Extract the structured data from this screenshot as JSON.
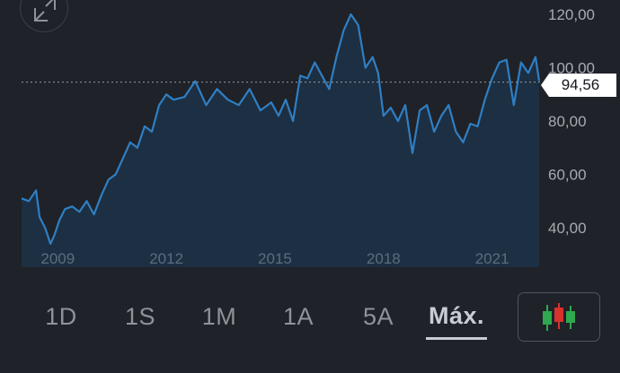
{
  "chart_data": {
    "type": "area",
    "y_ticks": [
      "120,00",
      "100,00",
      "80,00",
      "60,00",
      "40,00"
    ],
    "y_tick_values": [
      120,
      100,
      80,
      60,
      40
    ],
    "x_ticks": [
      "2009",
      "2012",
      "2015",
      "2018",
      "2021"
    ],
    "x_tick_values": [
      2009,
      2012,
      2015,
      2018,
      2021
    ],
    "x_range": [
      2008.1,
      2022.4
    ],
    "y_range": [
      30,
      125
    ],
    "current_price": 94.56,
    "current_price_label": "94,56",
    "line_color": "#2f7fc4",
    "series": [
      {
        "x": [
          2008.1,
          2008.3,
          2008.5,
          2008.6,
          2008.75,
          2008.9,
          2009.0,
          2009.15,
          2009.3,
          2009.5,
          2009.7,
          2009.9,
          2010.1,
          2010.3,
          2010.5,
          2010.7,
          2010.9,
          2011.1,
          2011.3,
          2011.5,
          2011.7,
          2011.9,
          2012.1,
          2012.3,
          2012.6,
          2012.9,
          2013.2,
          2013.5,
          2013.8,
          2014.1,
          2014.4,
          2014.7,
          2015.0,
          2015.2,
          2015.4,
          2015.6,
          2015.8,
          2016.0,
          2016.2,
          2016.4,
          2016.6,
          2016.8,
          2017.0,
          2017.2,
          2017.4,
          2017.6,
          2017.8,
          2017.95,
          2018.1,
          2018.3,
          2018.5,
          2018.7,
          2018.9,
          2019.1,
          2019.3,
          2019.5,
          2019.7,
          2019.9,
          2020.1,
          2020.3,
          2020.5,
          2020.7,
          2020.9,
          2021.1,
          2021.3,
          2021.5,
          2021.7,
          2021.9,
          2022.1,
          2022.3,
          2022.4
        ],
        "y": [
          51,
          50,
          54,
          44,
          40,
          34,
          37,
          43,
          47,
          48,
          46,
          50,
          45,
          52,
          58,
          60,
          66,
          72,
          70,
          78,
          76,
          86,
          90,
          88,
          89,
          95,
          86,
          92,
          88,
          86,
          92,
          84,
          87,
          82,
          88,
          80,
          97,
          96,
          102,
          97,
          92,
          104,
          114,
          120,
          116,
          100,
          104,
          98,
          82,
          85,
          80,
          86,
          68,
          84,
          86,
          76,
          82,
          86,
          76,
          72,
          79,
          78,
          88,
          96,
          102,
          103,
          86,
          102,
          98,
          104,
          95
        ]
      }
    ]
  },
  "range_tabs": [
    {
      "label": "1D",
      "active": false
    },
    {
      "label": "1S",
      "active": false
    },
    {
      "label": "1M",
      "active": false
    },
    {
      "label": "1A",
      "active": false
    },
    {
      "label": "5A",
      "active": false
    },
    {
      "label": "Máx.",
      "active": true
    }
  ],
  "icons": {
    "expand": "expand-arrows-icon",
    "chart_type": "candlestick-icon"
  },
  "colors": {
    "background": "#1f2228",
    "candle_green": "#2fa84f",
    "candle_red": "#d8322f"
  }
}
